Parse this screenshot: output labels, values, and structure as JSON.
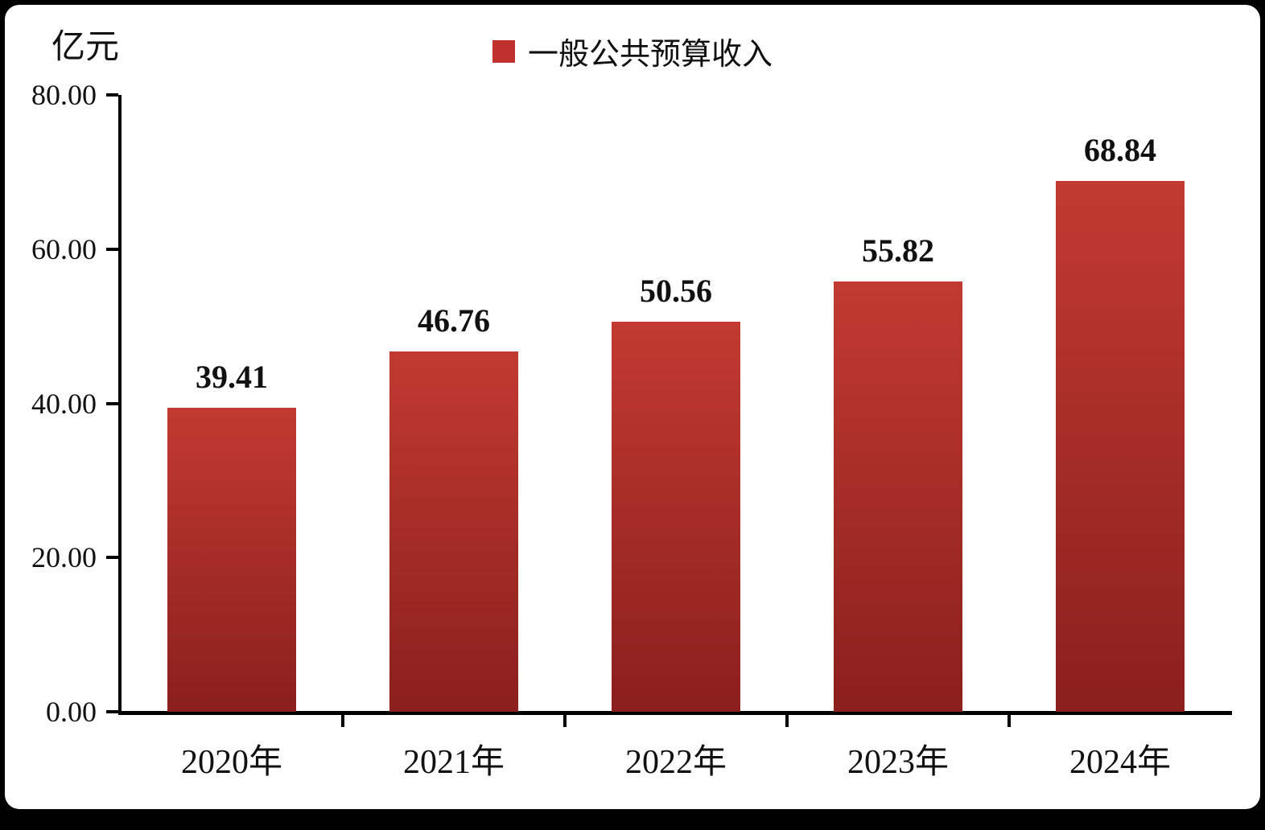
{
  "chart_data": {
    "type": "bar",
    "title": "",
    "unit_label": "亿元",
    "legend": [
      "一般公共预算收入"
    ],
    "categories": [
      "2020年",
      "2021年",
      "2022年",
      "2023年",
      "2024年"
    ],
    "values": [
      39.41,
      46.76,
      50.56,
      55.82,
      68.84
    ],
    "value_labels": [
      "39.41",
      "46.76",
      "50.56",
      "55.82",
      "68.84"
    ],
    "ylim": [
      0,
      80
    ],
    "yticks": [
      0,
      20,
      40,
      60,
      80
    ],
    "ytick_labels": [
      "0.00",
      "20.00",
      "40.00",
      "60.00",
      "80.00"
    ],
    "grid": false,
    "legend_position": "top-center",
    "colors": {
      "bar_top": "#c23a31",
      "bar_bottom": "#8a1f1d",
      "legend_swatch": "#c0302c",
      "axis": "#000000",
      "background": "#ffffff",
      "frame": "#000000"
    }
  }
}
